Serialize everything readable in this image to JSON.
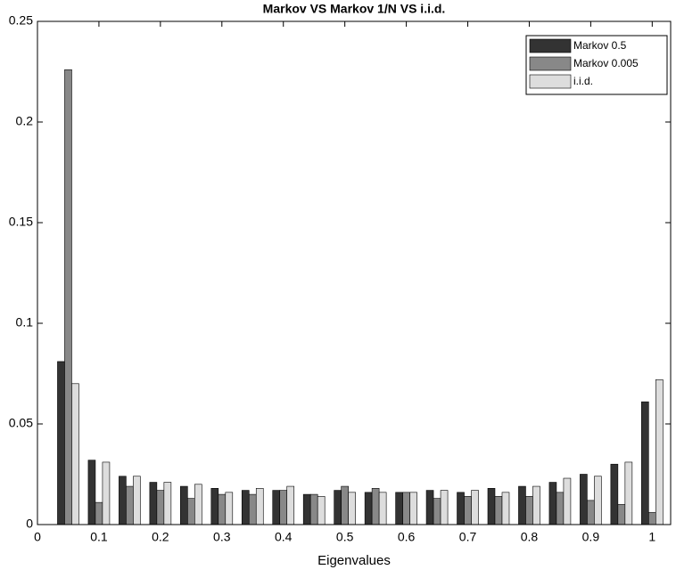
{
  "chart_data": {
    "type": "bar",
    "title": "Markov VS Markov 1/N VS i.i.d.",
    "x_label": "Eigenvalues",
    "x": [
      0.05,
      0.1,
      0.15,
      0.2,
      0.25,
      0.3,
      0.35,
      0.4,
      0.45,
      0.5,
      0.55,
      0.6,
      0.65,
      0.7,
      0.75,
      0.8,
      0.85,
      0.9,
      0.95,
      1.0
    ],
    "series": [
      {
        "name": "Markov 0.5",
        "color": "#333333",
        "values": [
          0.081,
          0.032,
          0.024,
          0.021,
          0.019,
          0.018,
          0.017,
          0.017,
          0.015,
          0.017,
          0.016,
          0.016,
          0.017,
          0.016,
          0.018,
          0.019,
          0.021,
          0.025,
          0.03,
          0.061
        ]
      },
      {
        "name": "Markov 0.005",
        "color": "#888888",
        "values": [
          0.226,
          0.011,
          0.019,
          0.017,
          0.013,
          0.015,
          0.015,
          0.017,
          0.015,
          0.019,
          0.018,
          0.016,
          0.013,
          0.014,
          0.014,
          0.014,
          0.016,
          0.012,
          0.01,
          0.006
        ]
      },
      {
        "name": "i.i.d.",
        "color": "#dddddd",
        "values": [
          0.07,
          0.031,
          0.024,
          0.021,
          0.02,
          0.016,
          0.018,
          0.019,
          0.014,
          0.016,
          0.016,
          0.016,
          0.017,
          0.017,
          0.016,
          0.019,
          0.023,
          0.024,
          0.031,
          0.072
        ]
      }
    ],
    "xlim": [
      0,
      1.03
    ],
    "xticks": [
      0,
      0.1,
      0.2,
      0.3,
      0.4,
      0.5,
      0.6,
      0.7,
      0.8,
      0.9,
      1
    ],
    "ylim": [
      0,
      0.25
    ],
    "yticks": [
      0,
      0.05,
      0.1,
      0.15,
      0.2,
      0.25
    ],
    "grid": false,
    "legend": "top-right"
  }
}
